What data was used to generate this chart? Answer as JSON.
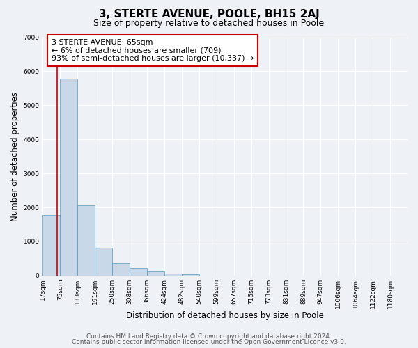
{
  "title": "3, STERTE AVENUE, POOLE, BH15 2AJ",
  "subtitle": "Size of property relative to detached houses in Poole",
  "xlabel": "Distribution of detached houses by size in Poole",
  "ylabel": "Number of detached properties",
  "bin_labels": [
    "17sqm",
    "75sqm",
    "133sqm",
    "191sqm",
    "250sqm",
    "308sqm",
    "366sqm",
    "424sqm",
    "482sqm",
    "540sqm",
    "599sqm",
    "657sqm",
    "715sqm",
    "773sqm",
    "831sqm",
    "889sqm",
    "947sqm",
    "1006sqm",
    "1064sqm",
    "1122sqm",
    "1180sqm"
  ],
  "bar_values": [
    1780,
    5780,
    2070,
    810,
    360,
    220,
    110,
    60,
    30,
    5,
    5,
    5,
    5,
    0,
    0,
    0,
    0,
    0,
    0,
    0,
    0
  ],
  "bar_color": "#c8d8e8",
  "bar_edge_color": "#5599bb",
  "marker_color": "#cc0000",
  "annotation_title": "3 STERTE AVENUE: 65sqm",
  "annotation_line1": "← 6% of detached houses are smaller (709)",
  "annotation_line2": "93% of semi-detached houses are larger (10,337) →",
  "annotation_box_color": "#ffffff",
  "annotation_box_edge": "#cc0000",
  "ylim": [
    0,
    7000
  ],
  "yticks": [
    0,
    1000,
    2000,
    3000,
    4000,
    5000,
    6000,
    7000
  ],
  "footer1": "Contains HM Land Registry data © Crown copyright and database right 2024.",
  "footer2": "Contains public sector information licensed under the Open Government Licence v3.0.",
  "bg_color": "#eef2f7",
  "grid_color": "#ffffff",
  "title_fontsize": 11,
  "subtitle_fontsize": 9,
  "axis_label_fontsize": 8.5,
  "tick_fontsize": 6.5,
  "annotation_fontsize": 8,
  "footer_fontsize": 6.5
}
